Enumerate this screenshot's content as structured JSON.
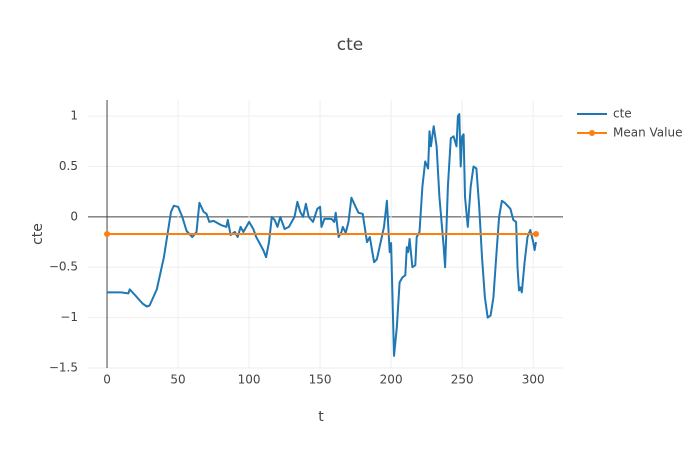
{
  "chart_data": {
    "type": "line",
    "title": "cte",
    "x_label": "t",
    "y_label": "cte",
    "xlim": [
      -13.4,
      321
    ],
    "ylim": [
      -1.5,
      1.16
    ],
    "xticks": [
      0,
      50,
      100,
      150,
      200,
      250,
      300
    ],
    "yticks": [
      {
        "value": -1.5,
        "label": "−1.5"
      },
      {
        "value": -1,
        "label": "−1"
      },
      {
        "value": -0.5,
        "label": "−0.5"
      },
      0,
      0.5,
      1
    ],
    "grid": true,
    "legend": "top-right",
    "series": [
      {
        "name": "cte",
        "color": "#1f77b4",
        "mode": "lines",
        "x": [
          0,
          10,
          15,
          16,
          20,
          25,
          28,
          30,
          35,
          40,
          45,
          47,
          50,
          53,
          56,
          60,
          63,
          65,
          68,
          70,
          72,
          75,
          80,
          84,
          85,
          87,
          90,
          92,
          94,
          96,
          100,
          103,
          105,
          107,
          110,
          112,
          114,
          116,
          118,
          120,
          122,
          125,
          128,
          132,
          134,
          136,
          138,
          140,
          142,
          145,
          148,
          150,
          151,
          153,
          158,
          160,
          161,
          163,
          165,
          166,
          168,
          170,
          172,
          175,
          177,
          180,
          183,
          185,
          188,
          190,
          195,
          197,
          198,
          199,
          200,
          202,
          204,
          206,
          208,
          210,
          211,
          212,
          213,
          215,
          217,
          218,
          220,
          222,
          224,
          226,
          227,
          228,
          230,
          232,
          234,
          237,
          238,
          240,
          242,
          244,
          246,
          247,
          248,
          249,
          250,
          251,
          252,
          254,
          256,
          258,
          260,
          262,
          264,
          266,
          268,
          270,
          272,
          274,
          276,
          278,
          280,
          284,
          286,
          288,
          289,
          290,
          291,
          292,
          294,
          296,
          298,
          300,
          301,
          302
        ],
        "values": [
          -0.75,
          -0.75,
          -0.76,
          -0.72,
          -0.78,
          -0.86,
          -0.89,
          -0.88,
          -0.72,
          -0.4,
          0.05,
          0.11,
          0.1,
          0.0,
          -0.14,
          -0.2,
          -0.15,
          0.14,
          0.05,
          0.03,
          -0.05,
          -0.04,
          -0.08,
          -0.1,
          -0.03,
          -0.18,
          -0.15,
          -0.2,
          -0.1,
          -0.15,
          -0.05,
          -0.12,
          -0.2,
          -0.25,
          -0.33,
          -0.4,
          -0.25,
          0.0,
          -0.03,
          -0.1,
          0.0,
          -0.12,
          -0.1,
          0.0,
          0.15,
          0.05,
          0.0,
          0.13,
          0.0,
          -0.05,
          0.08,
          0.1,
          -0.1,
          -0.02,
          -0.02,
          -0.05,
          0.04,
          -0.2,
          -0.15,
          -0.1,
          -0.16,
          -0.05,
          0.19,
          0.1,
          0.04,
          0.03,
          -0.25,
          -0.2,
          -0.45,
          -0.42,
          -0.1,
          0.16,
          -0.1,
          -0.35,
          -0.26,
          -1.38,
          -1.1,
          -0.65,
          -0.6,
          -0.58,
          -0.3,
          -0.35,
          -0.22,
          -0.5,
          -0.48,
          -0.2,
          -0.15,
          0.3,
          0.55,
          0.48,
          0.85,
          0.7,
          0.9,
          0.7,
          0.2,
          -0.3,
          -0.5,
          0.3,
          0.78,
          0.8,
          0.7,
          1.0,
          1.02,
          0.5,
          0.8,
          0.82,
          0.2,
          -0.1,
          0.3,
          0.5,
          0.48,
          0.1,
          -0.4,
          -0.8,
          -1.0,
          -0.98,
          -0.8,
          -0.4,
          0.0,
          0.16,
          0.14,
          0.08,
          -0.03,
          -0.05,
          -0.5,
          -0.73,
          -0.7,
          -0.75,
          -0.45,
          -0.2,
          -0.13,
          -0.25,
          -0.33,
          -0.25
        ]
      },
      {
        "name": "Mean Value",
        "color": "#ff7f0e",
        "mode": "lines+markers",
        "x": [
          0,
          302
        ],
        "values": [
          -0.17,
          -0.17
        ]
      }
    ]
  }
}
